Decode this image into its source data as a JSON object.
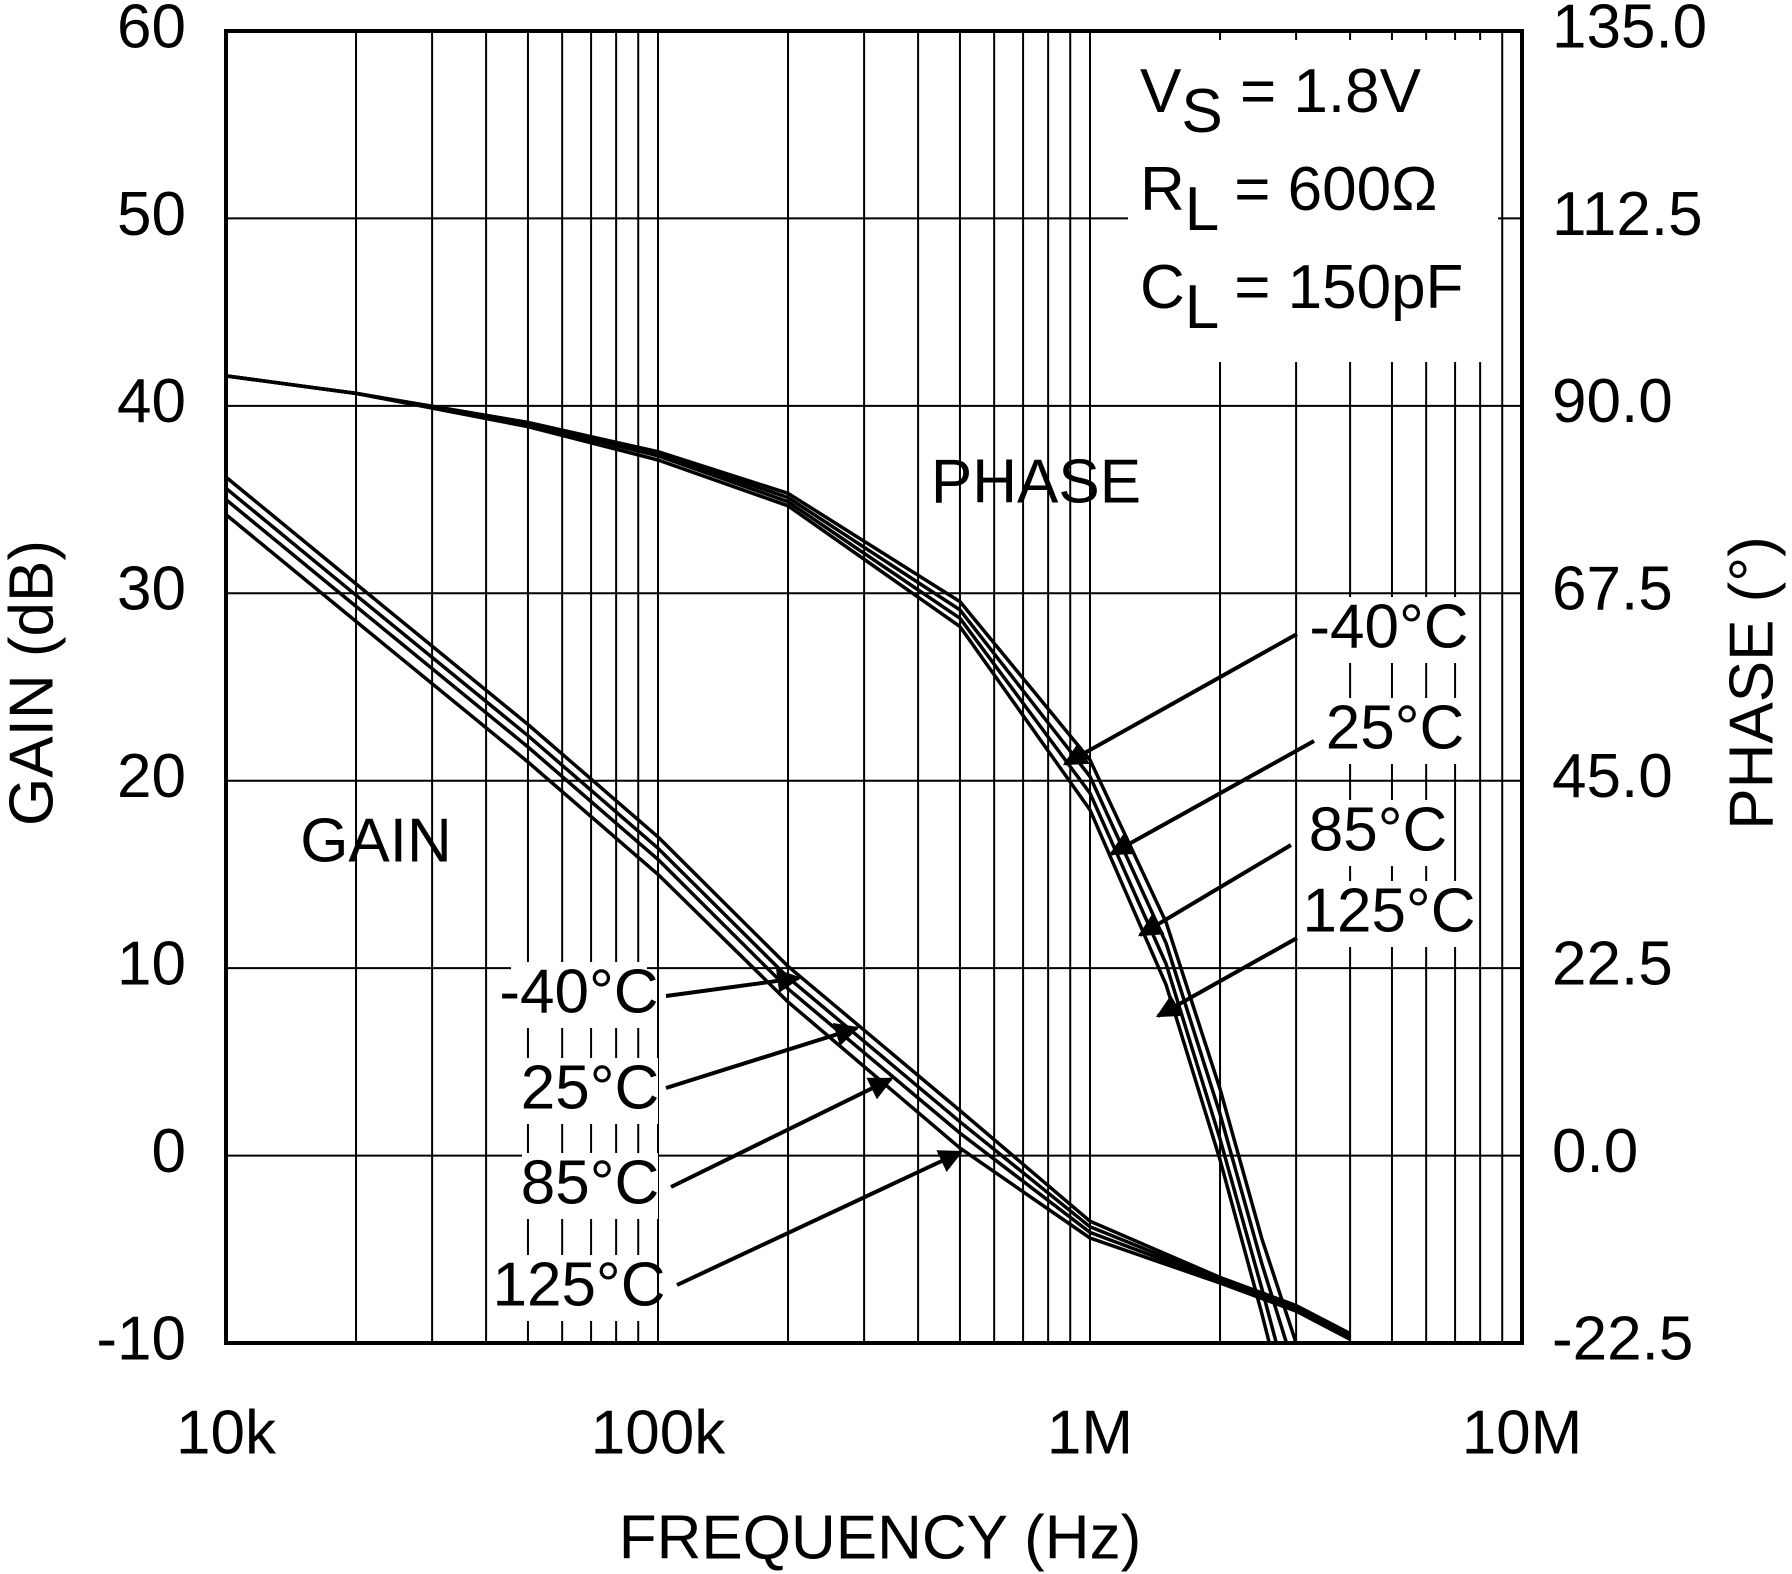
{
  "chart_data": {
    "type": "line",
    "x_label": "FREQUENCY (Hz)",
    "y_label": "GAIN (dB)",
    "y2_label": "PHASE (°)",
    "x_log": true,
    "grid": true,
    "minor_grid": true,
    "xlim": [
      10000,
      10000000
    ],
    "xticks": [
      {
        "value": 10000,
        "label": "10k"
      },
      {
        "value": 100000,
        "label": "100k"
      },
      {
        "value": 1000000,
        "label": "1M"
      },
      {
        "value": 10000000,
        "label": "10M"
      }
    ],
    "ylim": [
      -10,
      60
    ],
    "yticks": [
      -10,
      0,
      10,
      20,
      30,
      40,
      50,
      60
    ],
    "y2lim": [
      -22.5,
      135
    ],
    "y2ticks": [
      -22.5,
      {
        "value": 0,
        "label": "0.0"
      },
      22.5,
      {
        "value": 45,
        "label": "45.0"
      },
      67.5,
      {
        "value": 90,
        "label": "90.0"
      },
      112.5,
      {
        "value": 135,
        "label": "135.0"
      }
    ],
    "curve_labels": {
      "gain": "GAIN",
      "phase": "PHASE"
    },
    "conditions": [
      {
        "main": "V",
        "sub": "S",
        "rest": " = 1.8V"
      },
      {
        "main": "R",
        "sub": "L",
        "rest": " = 600Ω"
      },
      {
        "main": "C",
        "sub": "L",
        "rest": " = 150pF"
      }
    ],
    "series": [
      {
        "name": "-40°C",
        "color": "#000000",
        "group": "gain",
        "x": [
          10000,
          20000,
          50000,
          100000,
          200000,
          500000,
          1000000,
          2000000,
          3000000,
          4000000
        ],
        "values": [
          36.2,
          30.5,
          23,
          17,
          10.1,
          2.4,
          -3.5,
          -6.5,
          -8,
          -9.5
        ]
      },
      {
        "name": "25°C",
        "color": "#000000",
        "group": "gain",
        "x": [
          10000,
          20000,
          50000,
          100000,
          200000,
          500000,
          1000000,
          2000000,
          3000000,
          4000000
        ],
        "values": [
          35.6,
          29.9,
          22.4,
          16.4,
          9.5,
          1.8,
          -3.8,
          -6.6,
          -8.1,
          -9.6
        ]
      },
      {
        "name": "85°C",
        "color": "#000000",
        "group": "gain",
        "x": [
          10000,
          20000,
          50000,
          100000,
          200000,
          500000,
          1000000,
          2000000,
          3000000,
          4000000
        ],
        "values": [
          35,
          29.3,
          21.8,
          15.8,
          8.9,
          1.2,
          -4.1,
          -6.7,
          -8.2,
          -9.7
        ]
      },
      {
        "name": "125°C",
        "color": "#000000",
        "group": "gain",
        "x": [
          10000,
          20000,
          50000,
          100000,
          200000,
          500000,
          1000000,
          2000000,
          3000000,
          4000000
        ],
        "values": [
          34.2,
          28.5,
          21,
          15,
          8.2,
          0.4,
          -4.4,
          -6.8,
          -8.3,
          -9.8
        ]
      },
      {
        "name": "-40°C",
        "color": "#000000",
        "group": "phase",
        "axis": "y2",
        "x": [
          10000,
          20000,
          50000,
          100000,
          200000,
          500000,
          1000000,
          1500000,
          2000000,
          2500000,
          3000000
        ],
        "values": [
          93.6,
          91.5,
          88,
          84.5,
          79.5,
          66.5,
          47.5,
          28,
          8,
          -10,
          -22.5
        ]
      },
      {
        "name": "25°C",
        "color": "#000000",
        "group": "phase",
        "axis": "y2",
        "x": [
          10000,
          20000,
          50000,
          100000,
          200000,
          500000,
          1000000,
          1500000,
          2000000,
          2500000,
          2850000
        ],
        "values": [
          93.6,
          91.5,
          88,
          84.3,
          79,
          65.5,
          45.5,
          25.5,
          5,
          -13,
          -22.5
        ]
      },
      {
        "name": "85°C",
        "color": "#000000",
        "group": "phase",
        "axis": "y2",
        "x": [
          10000,
          20000,
          50000,
          100000,
          200000,
          500000,
          1000000,
          1500000,
          2000000,
          2500000,
          2700000
        ],
        "values": [
          93.6,
          91.5,
          87.8,
          84,
          78.5,
          64.5,
          43.5,
          23,
          2,
          -16,
          -22.5
        ]
      },
      {
        "name": "125°C",
        "color": "#000000",
        "group": "phase",
        "axis": "y2",
        "x": [
          10000,
          20000,
          50000,
          100000,
          200000,
          500000,
          1000000,
          1500000,
          2000000,
          2500000,
          2600000
        ],
        "values": [
          93.6,
          91.5,
          87.5,
          83.5,
          78,
          63.5,
          41.5,
          20.5,
          -0.5,
          -19,
          -22.5
        ]
      }
    ]
  }
}
